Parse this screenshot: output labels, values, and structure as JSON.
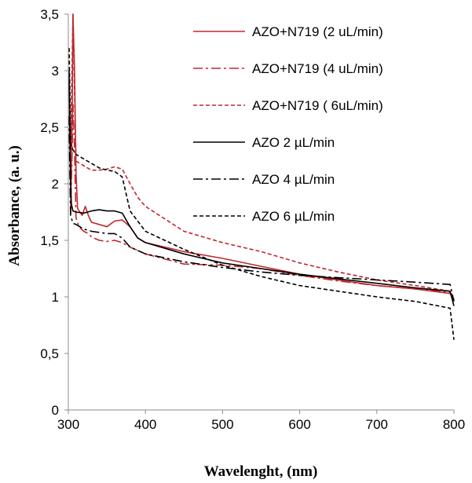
{
  "chart_data": {
    "type": "line",
    "title": "",
    "xlabel": "Wavelenght, (nm)",
    "ylabel": "Absorbance, (a. u.)",
    "xlim": [
      300,
      800
    ],
    "ylim": [
      0,
      3.5
    ],
    "x_ticks": [
      "300",
      "400",
      "500",
      "600",
      "700",
      "800"
    ],
    "y_ticks": [
      "0",
      "0,5",
      "1",
      "1,5",
      "2",
      "2,5",
      "3",
      "3,5"
    ],
    "grid": false,
    "legend_position": "top-right",
    "series": [
      {
        "name": "AZO+N719 (2 uL/min)",
        "color": "#c0282d",
        "dash": "solid",
        "points": [
          [
            303,
            1.75
          ],
          [
            305,
            2.6
          ],
          [
            306,
            3.5
          ],
          [
            308,
            3.0
          ],
          [
            310,
            2.1
          ],
          [
            312,
            1.78
          ],
          [
            318,
            1.72
          ],
          [
            322,
            1.8
          ],
          [
            326,
            1.72
          ],
          [
            330,
            1.66
          ],
          [
            340,
            1.64
          ],
          [
            350,
            1.62
          ],
          [
            360,
            1.67
          ],
          [
            370,
            1.68
          ],
          [
            380,
            1.62
          ],
          [
            390,
            1.52
          ],
          [
            400,
            1.48
          ],
          [
            450,
            1.4
          ],
          [
            500,
            1.34
          ],
          [
            550,
            1.27
          ],
          [
            600,
            1.2
          ],
          [
            650,
            1.15
          ],
          [
            700,
            1.1
          ],
          [
            750,
            1.07
          ],
          [
            795,
            1.03
          ],
          [
            800,
            0.97
          ]
        ]
      },
      {
        "name": "AZO+N719 (4 uL/min)",
        "color": "#c0282d",
        "dash": "dashdot",
        "points": [
          [
            303,
            1.72
          ],
          [
            305,
            2.3
          ],
          [
            306,
            2.7
          ],
          [
            308,
            2.3
          ],
          [
            310,
            1.7
          ],
          [
            314,
            1.62
          ],
          [
            320,
            1.58
          ],
          [
            326,
            1.56
          ],
          [
            330,
            1.53
          ],
          [
            340,
            1.5
          ],
          [
            350,
            1.49
          ],
          [
            360,
            1.5
          ],
          [
            370,
            1.48
          ],
          [
            380,
            1.44
          ],
          [
            400,
            1.38
          ],
          [
            450,
            1.29
          ],
          [
            500,
            1.28
          ],
          [
            550,
            1.25
          ],
          [
            600,
            1.19
          ],
          [
            650,
            1.14
          ],
          [
            700,
            1.1
          ],
          [
            750,
            1.07
          ],
          [
            795,
            1.04
          ],
          [
            800,
            0.98
          ]
        ]
      },
      {
        "name": "AZO+N719 ( 6uL/min)",
        "color": "#c0282d",
        "dash": "dash",
        "points": [
          [
            303,
            2.3
          ],
          [
            305,
            3.1
          ],
          [
            306,
            3.5
          ],
          [
            308,
            2.8
          ],
          [
            310,
            2.2
          ],
          [
            320,
            2.16
          ],
          [
            330,
            2.12
          ],
          [
            340,
            2.12
          ],
          [
            350,
            2.13
          ],
          [
            360,
            2.15
          ],
          [
            370,
            2.13
          ],
          [
            380,
            2.0
          ],
          [
            390,
            1.88
          ],
          [
            400,
            1.8
          ],
          [
            450,
            1.58
          ],
          [
            500,
            1.48
          ],
          [
            550,
            1.4
          ],
          [
            600,
            1.3
          ],
          [
            650,
            1.22
          ],
          [
            700,
            1.15
          ],
          [
            750,
            1.1
          ],
          [
            795,
            1.05
          ],
          [
            800,
            0.98
          ]
        ]
      },
      {
        "name": "AZO 2 µL/min",
        "color": "#000000",
        "dash": "solid",
        "points": [
          [
            301,
            3.0
          ],
          [
            302,
            2.4
          ],
          [
            303,
            2.0
          ],
          [
            304,
            1.82
          ],
          [
            306,
            1.76
          ],
          [
            310,
            1.75
          ],
          [
            320,
            1.74
          ],
          [
            330,
            1.76
          ],
          [
            340,
            1.77
          ],
          [
            350,
            1.76
          ],
          [
            360,
            1.76
          ],
          [
            370,
            1.74
          ],
          [
            380,
            1.62
          ],
          [
            390,
            1.52
          ],
          [
            400,
            1.48
          ],
          [
            450,
            1.38
          ],
          [
            500,
            1.3
          ],
          [
            550,
            1.25
          ],
          [
            600,
            1.2
          ],
          [
            650,
            1.16
          ],
          [
            700,
            1.12
          ],
          [
            750,
            1.08
          ],
          [
            795,
            1.05
          ],
          [
            800,
            0.92
          ]
        ]
      },
      {
        "name": "AZO 4 µL/min",
        "color": "#000000",
        "dash": "dashdot",
        "points": [
          [
            301,
            2.6
          ],
          [
            302,
            2.1
          ],
          [
            303,
            1.72
          ],
          [
            306,
            1.65
          ],
          [
            310,
            1.64
          ],
          [
            320,
            1.6
          ],
          [
            330,
            1.58
          ],
          [
            340,
            1.57
          ],
          [
            350,
            1.56
          ],
          [
            360,
            1.56
          ],
          [
            370,
            1.52
          ],
          [
            380,
            1.44
          ],
          [
            400,
            1.38
          ],
          [
            450,
            1.31
          ],
          [
            500,
            1.26
          ],
          [
            550,
            1.22
          ],
          [
            600,
            1.19
          ],
          [
            650,
            1.17
          ],
          [
            700,
            1.15
          ],
          [
            750,
            1.13
          ],
          [
            795,
            1.11
          ],
          [
            800,
            0.96
          ]
        ]
      },
      {
        "name": "AZO 6 µL/min",
        "color": "#000000",
        "dash": "dash",
        "points": [
          [
            301,
            3.2
          ],
          [
            302,
            2.8
          ],
          [
            303,
            2.35
          ],
          [
            306,
            2.3
          ],
          [
            310,
            2.26
          ],
          [
            320,
            2.22
          ],
          [
            330,
            2.18
          ],
          [
            340,
            2.14
          ],
          [
            350,
            2.12
          ],
          [
            360,
            2.11
          ],
          [
            370,
            2.06
          ],
          [
            380,
            1.76
          ],
          [
            400,
            1.58
          ],
          [
            450,
            1.42
          ],
          [
            500,
            1.28
          ],
          [
            550,
            1.18
          ],
          [
            600,
            1.1
          ],
          [
            650,
            1.05
          ],
          [
            700,
            1.0
          ],
          [
            750,
            0.96
          ],
          [
            795,
            0.9
          ],
          [
            800,
            0.62
          ]
        ]
      }
    ]
  }
}
